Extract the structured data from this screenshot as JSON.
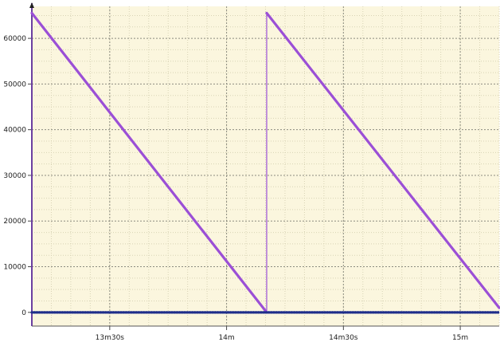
{
  "chart_data": {
    "type": "line",
    "title": "",
    "xlabel": "",
    "ylabel": "",
    "xlim_seconds": [
      790,
      910
    ],
    "ylim": [
      -3000,
      67000
    ],
    "grid": true,
    "x_major_ticks": [
      {
        "seconds": 810,
        "label": "13m30s"
      },
      {
        "seconds": 840,
        "label": "14m"
      },
      {
        "seconds": 870,
        "label": "14m30s"
      },
      {
        "seconds": 900,
        "label": "15m"
      }
    ],
    "x_minor_step_seconds": 5,
    "y_ticks": [
      {
        "value": 0,
        "label": "0"
      },
      {
        "value": 10000,
        "label": "10000"
      },
      {
        "value": 20000,
        "label": "20000"
      },
      {
        "value": 30000,
        "label": "30000"
      },
      {
        "value": 40000,
        "label": "40000"
      },
      {
        "value": 50000,
        "label": "50000"
      },
      {
        "value": 60000,
        "label": "60000"
      }
    ],
    "series": [
      {
        "color": "#9b4fd6",
        "segments": [
          [
            {
              "x": 790,
              "y": 65535
            },
            {
              "x": 850.3,
              "y": 0
            }
          ],
          [
            {
              "x": 850.3,
              "y": 0
            },
            {
              "x": 850.3,
              "y": 65535
            }
          ],
          [
            {
              "x": 850.3,
              "y": 65535
            },
            {
              "x": 910,
              "y": 1000
            }
          ]
        ]
      },
      {
        "color": "#1f2e8a",
        "points": [
          {
            "x": 790,
            "y": 0
          },
          {
            "x": 910,
            "y": 0
          }
        ]
      }
    ]
  },
  "colors": {
    "plot_background": "#fbf6de",
    "minor_grid": "#d8d3b5",
    "major_grid": "#8c8c80",
    "axis": "#6b3fa0"
  }
}
